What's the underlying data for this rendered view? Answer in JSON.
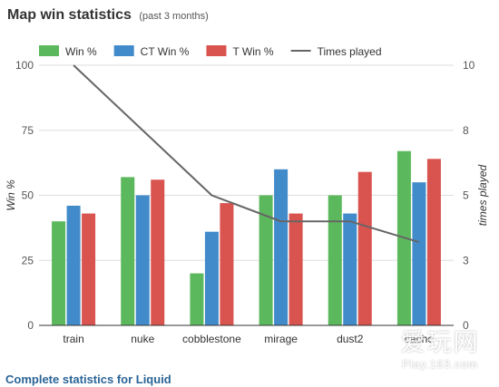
{
  "header": {
    "title": "Map win statistics",
    "subtitle": "(past 3 months)"
  },
  "footer": {
    "link_label": "Complete statistics for Liquid"
  },
  "watermark": {
    "main": "爱玩网",
    "sub": "Play.163.com"
  },
  "chart_data": {
    "type": "bar",
    "categories": [
      "train",
      "nuke",
      "cobblestone",
      "mirage",
      "dust2",
      "cache"
    ],
    "series": [
      {
        "name": "Win %",
        "type": "bar",
        "axis": "left",
        "color": "#5cb85c",
        "values": [
          40,
          57,
          20,
          50,
          50,
          67
        ]
      },
      {
        "name": "CT Win %",
        "type": "bar",
        "axis": "left",
        "color": "#428bca",
        "values": [
          46,
          50,
          36,
          60,
          43,
          55
        ]
      },
      {
        "name": "T Win %",
        "type": "bar",
        "axis": "left",
        "color": "#d9534f",
        "values": [
          43,
          56,
          47,
          43,
          59,
          64
        ]
      },
      {
        "name": "Times played",
        "type": "line",
        "axis": "right",
        "color": "#666666",
        "values": [
          10,
          7.5,
          5,
          4,
          4,
          3.2
        ]
      }
    ],
    "ylabel": "Win %",
    "y2label": "times played",
    "ylim": [
      0,
      100
    ],
    "y2lim": [
      0,
      10
    ],
    "yticks": [
      "0",
      "25",
      "50",
      "75",
      "100"
    ],
    "y2ticks": [
      "0",
      "3",
      "5",
      "8",
      "10"
    ],
    "grid": true,
    "legend_position": "top"
  }
}
